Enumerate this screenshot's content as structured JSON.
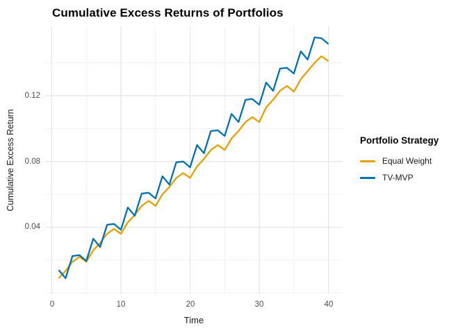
{
  "chart_data": {
    "type": "line",
    "title": "Cumulative Excess Returns of Portfolios",
    "xlabel": "Time",
    "ylabel": "Cumulative Excess Return",
    "legend_title": "Portfolio Strategy",
    "legend_position": "right",
    "grid": true,
    "background": "#FFFFFF",
    "grid_color_major": "#E4E4E4",
    "grid_color_minor": "#EFEFEF",
    "axis_text_color": "#4D4D4D",
    "xlim": [
      -0.95,
      42.05
    ],
    "ylim": [
      -0.0007,
      0.1622
    ],
    "x_ticks": {
      "major": [
        0,
        10,
        20,
        30,
        40
      ],
      "minor": [
        5,
        15,
        25,
        35
      ],
      "labels": [
        "0",
        "10",
        "20",
        "30",
        "40"
      ]
    },
    "y_ticks": {
      "major": [
        0.04,
        0.08,
        0.12
      ],
      "minor": [
        0.0,
        0.02,
        0.06,
        0.1,
        0.14
      ],
      "labels": [
        "0.04",
        "0.08",
        "0.12"
      ]
    },
    "x": [
      1,
      2,
      3,
      4,
      5,
      6,
      7,
      8,
      9,
      10,
      11,
      12,
      13,
      14,
      15,
      16,
      17,
      18,
      19,
      20,
      21,
      22,
      23,
      24,
      25,
      26,
      27,
      28,
      29,
      30,
      31,
      32,
      33,
      34,
      35,
      36,
      37,
      38,
      39,
      40
    ],
    "series": [
      {
        "name": "Equal Weight",
        "color": "#E69F00",
        "values": [
          0.009,
          0.0135,
          0.019,
          0.022,
          0.019,
          0.026,
          0.0305,
          0.036,
          0.039,
          0.036,
          0.043,
          0.0475,
          0.053,
          0.056,
          0.053,
          0.06,
          0.0645,
          0.07,
          0.073,
          0.07,
          0.077,
          0.0815,
          0.087,
          0.09,
          0.087,
          0.094,
          0.0985,
          0.104,
          0.107,
          0.104,
          0.113,
          0.1175,
          0.123,
          0.126,
          0.1225,
          0.13,
          0.135,
          0.14,
          0.144,
          0.141
        ]
      },
      {
        "name": "TV-MVP",
        "color": "#0072B2",
        "values": [
          0.014,
          0.009,
          0.0225,
          0.023,
          0.0195,
          0.033,
          0.028,
          0.0415,
          0.042,
          0.0385,
          0.052,
          0.047,
          0.0605,
          0.061,
          0.0575,
          0.071,
          0.066,
          0.0795,
          0.08,
          0.0765,
          0.09,
          0.085,
          0.0985,
          0.099,
          0.0955,
          0.109,
          0.104,
          0.1175,
          0.118,
          0.1145,
          0.128,
          0.123,
          0.1365,
          0.137,
          0.1335,
          0.147,
          0.142,
          0.1555,
          0.155,
          0.1515
        ]
      }
    ]
  }
}
